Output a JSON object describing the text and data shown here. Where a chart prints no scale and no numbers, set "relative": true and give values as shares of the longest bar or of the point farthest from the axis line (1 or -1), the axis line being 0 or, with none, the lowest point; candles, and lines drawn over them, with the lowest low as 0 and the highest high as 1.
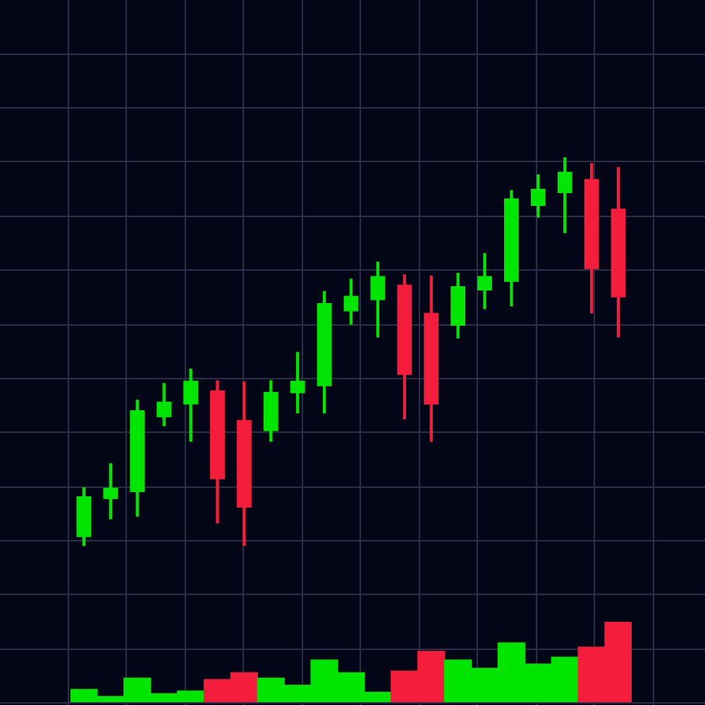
{
  "chart_data": [
    {
      "type": "candlestick",
      "relative": true,
      "grid": true,
      "categories": [
        null,
        null,
        null,
        null,
        null,
        null,
        null,
        null,
        null,
        null,
        null,
        null,
        null,
        null,
        null,
        null,
        null,
        null,
        null,
        null,
        null
      ],
      "ohlc": [
        [
          0.022,
          0.149,
          0,
          0.127
        ],
        [
          0.12,
          0.211,
          0.069,
          0.149
        ],
        [
          0.138,
          0.375,
          0.076,
          0.349
        ],
        [
          0.331,
          0.418,
          0.309,
          0.371
        ],
        [
          0.364,
          0.455,
          0.269,
          0.425
        ],
        [
          0.4,
          0.425,
          0.058,
          0.171
        ],
        [
          0.324,
          0.422,
          0,
          0.098
        ],
        [
          0.295,
          0.425,
          0.269,
          0.396
        ],
        [
          0.393,
          0.498,
          0.342,
          0.425
        ],
        [
          0.411,
          0.655,
          0.342,
          0.625
        ],
        [
          0.604,
          0.687,
          0.571,
          0.644
        ],
        [
          0.633,
          0.731,
          0.538,
          0.695
        ],
        [
          0.673,
          0.698,
          0.327,
          0.44
        ],
        [
          0.6,
          0.695,
          0.269,
          0.364
        ],
        [
          0.567,
          0.702,
          0.535,
          0.669
        ],
        [
          0.658,
          0.753,
          0.611,
          0.695
        ],
        [
          0.68,
          0.916,
          0.618,
          0.895
        ],
        [
          0.876,
          0.956,
          0.847,
          0.92
        ],
        [
          0.909,
          1,
          0.807,
          0.964
        ],
        [
          0.945,
          0.985,
          0.6,
          0.713
        ],
        [
          0.869,
          0.975,
          0.538,
          0.64
        ]
      ],
      "colors": [
        "#00e600",
        "#00e600",
        "#00e600",
        "#00e600",
        "#00e600",
        "#f41e3c",
        "#f41e3c",
        "#00e600",
        "#00e600",
        "#00e600",
        "#00e600",
        "#00e600",
        "#f41e3c",
        "#f41e3c",
        "#00e600",
        "#00e600",
        "#00e600",
        "#00e600",
        "#00e600",
        "#f41e3c",
        "#f41e3c"
      ]
    },
    {
      "type": "bar",
      "relative": true,
      "grid": true,
      "categories": [
        null,
        null,
        null,
        null,
        null,
        null,
        null,
        null,
        null,
        null,
        null,
        null,
        null,
        null,
        null,
        null,
        null,
        null,
        null,
        null,
        null
      ],
      "values": [
        0.158,
        0.07,
        0.298,
        0.105,
        0.14,
        0.281,
        0.368,
        0.298,
        0.211,
        0.526,
        0.368,
        0.123,
        0.386,
        0.632,
        0.526,
        0.421,
        0.737,
        0.474,
        0.561,
        0.684,
        1
      ],
      "colors": [
        "#00e600",
        "#00e600",
        "#00e600",
        "#00e600",
        "#00e600",
        "#f41e3c",
        "#f41e3c",
        "#00e600",
        "#00e600",
        "#00e600",
        "#00e600",
        "#00e600",
        "#f41e3c",
        "#f41e3c",
        "#00e600",
        "#00e600",
        "#00e600",
        "#00e600",
        "#00e600",
        "#f41e3c",
        "#f41e3c"
      ]
    }
  ]
}
